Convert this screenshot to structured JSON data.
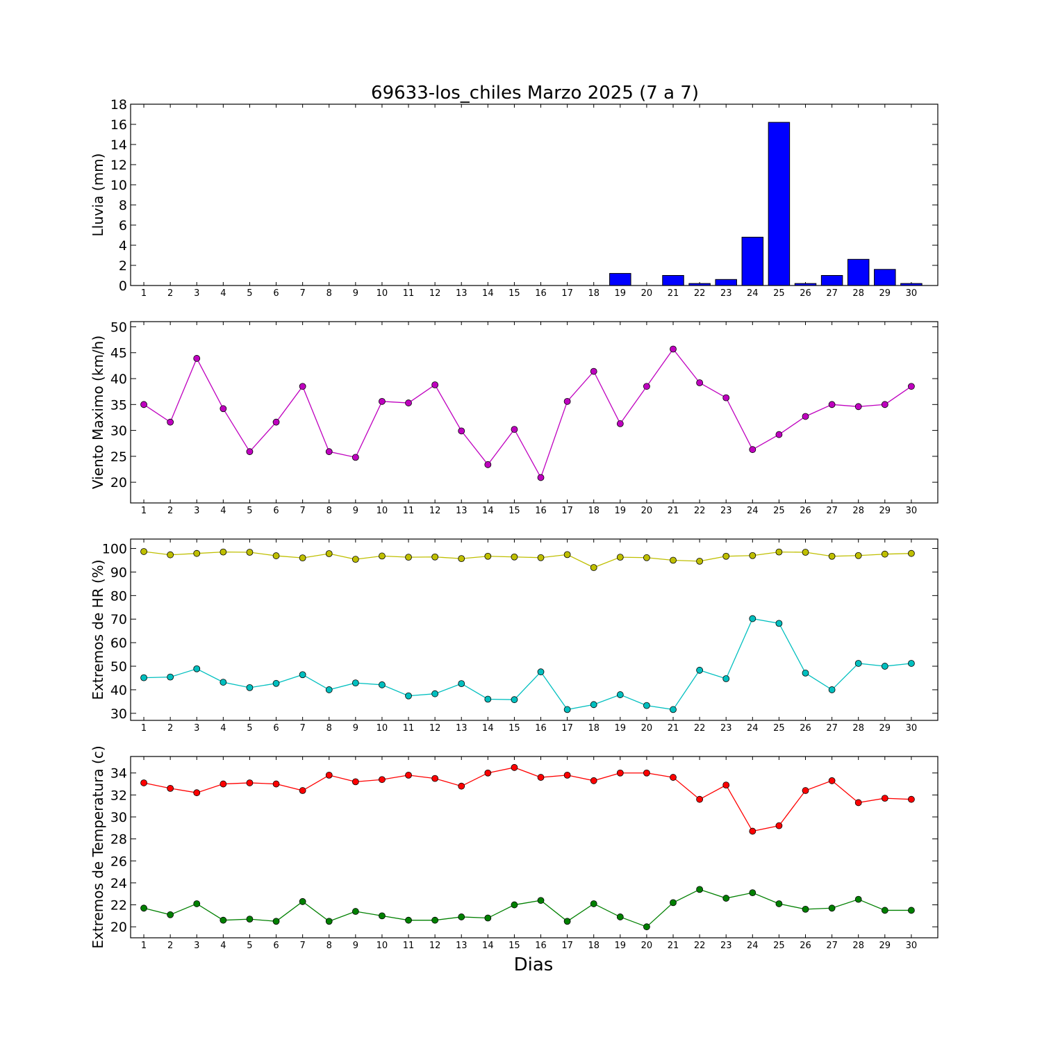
{
  "title": "69633-los_chiles Marzo 2025  (7 a 7)",
  "xlabel": "Dias",
  "colors": {
    "rain": "#0000ff",
    "wind": "#bf00bf",
    "hr_max": "#bfbf00",
    "hr_min": "#00bfbf",
    "temp_max": "#ff0000",
    "temp_min": "#008000"
  },
  "chart_data": [
    {
      "type": "bar",
      "ylabel": "Lluvia (mm)",
      "ylim": [
        0,
        18
      ],
      "yticks": [
        0,
        2,
        4,
        6,
        8,
        10,
        12,
        14,
        16,
        18
      ],
      "categories": [
        1,
        2,
        3,
        4,
        5,
        6,
        7,
        8,
        9,
        10,
        11,
        12,
        13,
        14,
        15,
        16,
        17,
        18,
        19,
        20,
        21,
        22,
        23,
        24,
        25,
        26,
        27,
        28,
        29,
        30
      ],
      "series": [
        {
          "values": [
            0,
            0,
            0,
            0,
            0,
            0,
            0,
            0,
            0,
            0,
            0,
            0,
            0,
            0,
            0,
            0,
            0,
            0,
            1.2,
            0,
            1.0,
            0.2,
            0.6,
            4.8,
            16.2,
            0.2,
            1.0,
            2.6,
            1.6,
            0.2
          ]
        }
      ]
    },
    {
      "type": "line",
      "ylabel": "Viento Maximo (km/h)",
      "ylim": [
        16,
        51
      ],
      "yticks": [
        20,
        25,
        30,
        35,
        40,
        45,
        50
      ],
      "categories": [
        1,
        2,
        3,
        4,
        5,
        6,
        7,
        8,
        9,
        10,
        11,
        12,
        13,
        14,
        15,
        16,
        17,
        18,
        19,
        20,
        21,
        22,
        23,
        24,
        25,
        26,
        27,
        28,
        29,
        30
      ],
      "series": [
        {
          "values": [
            35.0,
            31.6,
            43.9,
            34.2,
            25.9,
            31.6,
            38.5,
            25.9,
            24.8,
            35.6,
            35.3,
            38.8,
            29.9,
            23.4,
            30.2,
            20.9,
            35.6,
            41.4,
            31.3,
            38.5,
            45.7,
            39.2,
            36.3,
            26.3,
            29.2,
            32.7,
            35.0,
            34.6,
            35.0,
            38.5
          ]
        }
      ]
    },
    {
      "type": "line",
      "ylabel": "Extremos de HR (%)",
      "ylim": [
        27,
        104
      ],
      "yticks": [
        30,
        40,
        50,
        60,
        70,
        80,
        90,
        100
      ],
      "categories": [
        1,
        2,
        3,
        4,
        5,
        6,
        7,
        8,
        9,
        10,
        11,
        12,
        13,
        14,
        15,
        16,
        17,
        18,
        19,
        20,
        21,
        22,
        23,
        24,
        25,
        26,
        27,
        28,
        29,
        30
      ],
      "series": [
        {
          "values": [
            98.7,
            97.3,
            97.9,
            98.5,
            98.4,
            96.9,
            96.0,
            97.8,
            95.4,
            96.8,
            96.3,
            96.4,
            95.7,
            96.7,
            96.4,
            96.1,
            97.4,
            91.9,
            96.3,
            96.1,
            95.0,
            94.6,
            96.7,
            97.0,
            98.5,
            98.4,
            96.7,
            97.0,
            97.6,
            97.9
          ]
        },
        {
          "values": [
            45.1,
            45.4,
            48.9,
            43.2,
            40.9,
            42.7,
            46.4,
            40.0,
            42.9,
            42.1,
            37.4,
            38.3,
            42.6,
            36.0,
            35.8,
            47.6,
            31.6,
            33.7,
            37.9,
            33.3,
            31.6,
            48.3,
            44.7,
            70.2,
            68.2,
            47.1,
            40.0,
            51.2,
            50.0,
            51.2
          ]
        }
      ]
    },
    {
      "type": "line",
      "ylabel": "Extremos de Temperatura (c)",
      "ylim": [
        19,
        35.5
      ],
      "yticks": [
        20,
        22,
        24,
        26,
        28,
        30,
        32,
        34
      ],
      "categories": [
        1,
        2,
        3,
        4,
        5,
        6,
        7,
        8,
        9,
        10,
        11,
        12,
        13,
        14,
        15,
        16,
        17,
        18,
        19,
        20,
        21,
        22,
        23,
        24,
        25,
        26,
        27,
        28,
        29,
        30
      ],
      "series": [
        {
          "values": [
            33.1,
            32.6,
            32.2,
            33.0,
            33.1,
            33.0,
            32.4,
            33.8,
            33.2,
            33.4,
            33.8,
            33.5,
            32.8,
            34.0,
            34.5,
            33.6,
            33.8,
            33.3,
            34.0,
            34.0,
            33.6,
            31.6,
            32.9,
            28.7,
            29.2,
            32.4,
            33.3,
            31.3,
            31.7,
            31.6
          ]
        },
        {
          "values": [
            21.7,
            21.1,
            22.1,
            20.6,
            20.7,
            20.5,
            22.3,
            20.5,
            21.4,
            21.0,
            20.6,
            20.6,
            20.9,
            20.8,
            22.0,
            22.4,
            20.5,
            22.1,
            20.9,
            20.0,
            22.2,
            23.4,
            22.6,
            23.1,
            22.1,
            21.6,
            21.7,
            22.5,
            21.5,
            21.5
          ]
        }
      ]
    }
  ]
}
